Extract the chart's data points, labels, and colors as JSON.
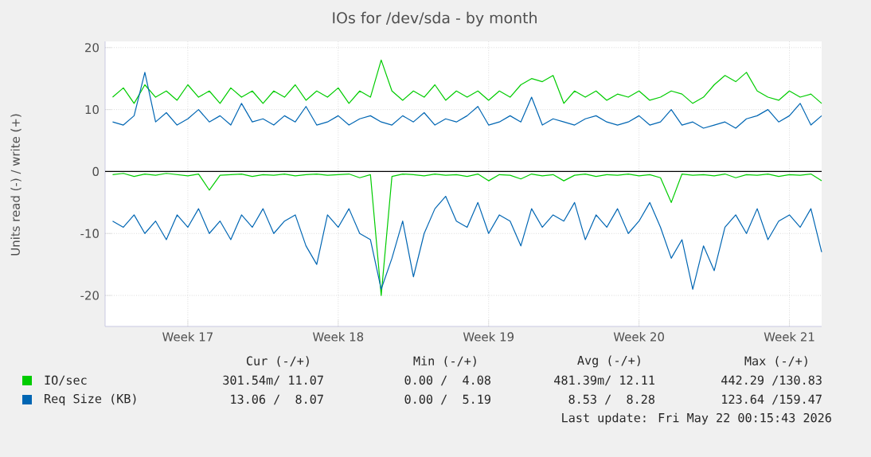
{
  "chart_data": {
    "type": "line",
    "title": "IOs for /dev/sda - by month",
    "ylabel": "Units read (-) / write (+)",
    "x": [
      "2026-04-19T00:00",
      "2026-04-19T12:00",
      "2026-04-20T00:00",
      "2026-04-20T12:00",
      "2026-04-21T00:00",
      "2026-04-21T12:00",
      "2026-04-22T00:00",
      "2026-04-22T12:00",
      "2026-04-23T00:00",
      "2026-04-23T12:00",
      "2026-04-24T00:00",
      "2026-04-24T12:00",
      "2026-04-25T00:00",
      "2026-04-25T12:00",
      "2026-04-26T00:00",
      "2026-04-26T12:00",
      "2026-04-27T00:00",
      "2026-04-27T12:00",
      "2026-04-28T00:00",
      "2026-04-28T12:00",
      "2026-04-29T00:00",
      "2026-04-29T12:00",
      "2026-04-30T00:00",
      "2026-04-30T12:00",
      "2026-05-01T00:00",
      "2026-05-01T12:00",
      "2026-05-02T00:00",
      "2026-05-02T12:00",
      "2026-05-03T00:00",
      "2026-05-03T12:00",
      "2026-05-04T00:00",
      "2026-05-04T12:00",
      "2026-05-05T00:00",
      "2026-05-05T12:00",
      "2026-05-06T00:00",
      "2026-05-06T12:00",
      "2026-05-07T00:00",
      "2026-05-07T12:00",
      "2026-05-08T00:00",
      "2026-05-08T12:00",
      "2026-05-09T00:00",
      "2026-05-09T12:00",
      "2026-05-10T00:00",
      "2026-05-10T12:00",
      "2026-05-11T00:00",
      "2026-05-11T12:00",
      "2026-05-12T00:00",
      "2026-05-12T12:00",
      "2026-05-13T00:00",
      "2026-05-13T12:00",
      "2026-05-14T00:00",
      "2026-05-14T12:00",
      "2026-05-15T00:00",
      "2026-05-15T12:00",
      "2026-05-16T00:00",
      "2026-05-16T12:00",
      "2026-05-17T00:00",
      "2026-05-17T12:00",
      "2026-05-18T00:00",
      "2026-05-18T12:00",
      "2026-05-19T00:00",
      "2026-05-19T12:00",
      "2026-05-20T00:00",
      "2026-05-20T12:00",
      "2026-05-21T00:00",
      "2026-05-21T12:00",
      "2026-05-22T00:00"
    ],
    "xlim": [
      "2026-04-18T15:36",
      "2026-05-22T00:00"
    ],
    "xticks": [
      {
        "value": "2026-04-22T12:00",
        "label": "Week 17"
      },
      {
        "value": "2026-04-29T12:00",
        "label": "Week 18"
      },
      {
        "value": "2026-05-06T12:00",
        "label": "Week 19"
      },
      {
        "value": "2026-05-13T12:00",
        "label": "Week 20"
      },
      {
        "value": "2026-05-20T12:00",
        "label": "Week 21"
      }
    ],
    "ylim": [
      -25,
      21
    ],
    "yticks": [
      -20,
      -10,
      0,
      10,
      20
    ],
    "grid": true,
    "legend": "bottom",
    "ref_lines": [
      {
        "axis": "y",
        "value": 0,
        "color": "#000000"
      }
    ],
    "series": [
      {
        "name": "IO/sec",
        "color": "#00cc00",
        "values": [
          12,
          13.5,
          11,
          14,
          12,
          13,
          11.5,
          14,
          12,
          13,
          11,
          13.5,
          12,
          13,
          11,
          13,
          12,
          14,
          11.5,
          13,
          12,
          13.5,
          11,
          13,
          12,
          18,
          13,
          11.5,
          13,
          12,
          14,
          11.5,
          13,
          12,
          13,
          11.5,
          13,
          12,
          14,
          15,
          14.5,
          15.5,
          11,
          13,
          12,
          13,
          11.5,
          12.5,
          12,
          13,
          11.5,
          12,
          13,
          12.5,
          11,
          12,
          14,
          15.5,
          14.5,
          16,
          13,
          12,
          11.5,
          13,
          12,
          12.5,
          11
        ]
      },
      {
        "color": "#00cc00",
        "values": [
          -0.5,
          -0.3,
          -0.8,
          -0.4,
          -0.6,
          -0.3,
          -0.5,
          -0.7,
          -0.4,
          -3,
          -0.6,
          -0.5,
          -0.4,
          -0.8,
          -0.5,
          -0.6,
          -0.4,
          -0.7,
          -0.5,
          -0.4,
          -0.6,
          -0.5,
          -0.4,
          -1,
          -0.5,
          -20,
          -0.8,
          -0.4,
          -0.5,
          -0.7,
          -0.4,
          -0.6,
          -0.5,
          -0.8,
          -0.4,
          -1.5,
          -0.5,
          -0.6,
          -1.2,
          -0.4,
          -0.7,
          -0.5,
          -1.5,
          -0.6,
          -0.4,
          -0.8,
          -0.5,
          -0.6,
          -0.4,
          -0.7,
          -0.5,
          -1,
          -5,
          -0.4,
          -0.6,
          -0.5,
          -0.7,
          -0.4,
          -1,
          -0.5,
          -0.6,
          -0.4,
          -0.8,
          -0.5,
          -0.6,
          -0.4,
          -1.5
        ]
      },
      {
        "name": "Req Size (KB)",
        "color": "#0066b3",
        "values": [
          8,
          7.5,
          9,
          16,
          8,
          9.5,
          7.5,
          8.5,
          10,
          8,
          9,
          7.5,
          11,
          8,
          8.5,
          7.5,
          9,
          8,
          10.5,
          7.5,
          8,
          9,
          7.5,
          8.5,
          9,
          8,
          7.5,
          9,
          8,
          9.5,
          7.5,
          8.5,
          8,
          9,
          10.5,
          7.5,
          8,
          9,
          8,
          12,
          7.5,
          8.5,
          8,
          7.5,
          8.5,
          9,
          8,
          7.5,
          8,
          9,
          7.5,
          8,
          10,
          7.5,
          8,
          7,
          7.5,
          8,
          7,
          8.5,
          9,
          10,
          8,
          9,
          11,
          7.5,
          9
        ]
      },
      {
        "color": "#0066b3",
        "values": [
          -8,
          -9,
          -7,
          -10,
          -8,
          -11,
          -7,
          -9,
          -6,
          -10,
          -8,
          -11,
          -7,
          -9,
          -6,
          -10,
          -8,
          -7,
          -12,
          -15,
          -7,
          -9,
          -6,
          -10,
          -11,
          -19,
          -14,
          -8,
          -17,
          -10,
          -6,
          -4,
          -8,
          -9,
          -5,
          -10,
          -7,
          -8,
          -12,
          -6,
          -9,
          -7,
          -8,
          -5,
          -11,
          -7,
          -9,
          -6,
          -10,
          -8,
          -5,
          -9,
          -14,
          -11,
          -19,
          -12,
          -16,
          -9,
          -7,
          -10,
          -6,
          -11,
          -8,
          -7,
          -9,
          -6,
          -13
        ]
      }
    ],
    "annotations": [
      "Cur (-/+)",
      "Min (-/+)",
      "Avg (-/+)",
      "Max (-/+)",
      "301.54m/ 11.07",
      "0.00 /  4.08",
      "481.39m/ 12.11",
      "442.29 /130.83",
      "13.06 /  8.07",
      "0.00 /  5.19",
      "8.53 /  8.28",
      "123.64 /159.47",
      "Last update: Fri May 22 00:15:43 2026"
    ]
  }
}
